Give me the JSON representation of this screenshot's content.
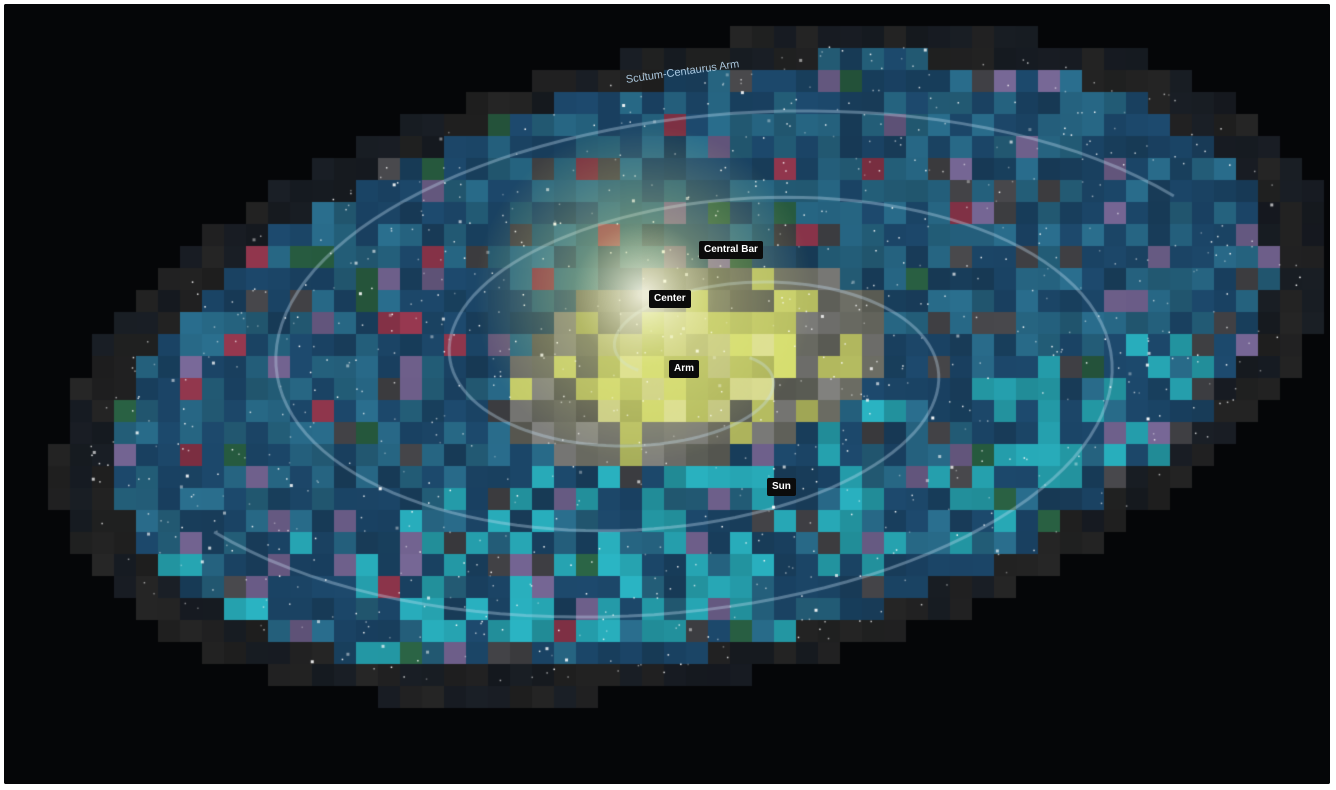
{
  "image": {
    "subject": "Milky Way galaxy",
    "background_color": "#050608",
    "palette": [
      "#1d4a6e",
      "#2a6f8f",
      "#2ab5c4",
      "#d8e070",
      "#7a6a9a",
      "#9b3a52",
      "#2e6b4a"
    ]
  },
  "labels": {
    "central_bar": "Central Bar",
    "center": "Center",
    "arm": "Arm",
    "sun": "Sun",
    "outer_arm": "Scutum-Centaurus Arm"
  }
}
